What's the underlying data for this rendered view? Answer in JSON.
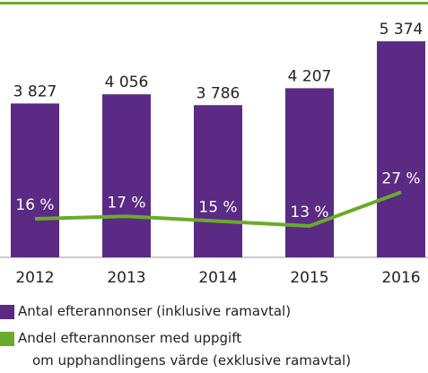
{
  "chart_data": {
    "type": "bar_line",
    "categories": [
      "2012",
      "2013",
      "2014",
      "2015",
      "2016"
    ],
    "series": [
      {
        "name": "Antal efterannonser (inklusive ramavtal)",
        "type": "bar",
        "color": "#5a2a84",
        "values": [
          3827,
          4056,
          3786,
          4207,
          5374
        ],
        "value_labels": [
          "3 827",
          "4 056",
          "3 786",
          "4 207",
          "5 374"
        ]
      },
      {
        "name": "Andel efterannonser med uppgift\nom upphandlingens värde (exklusive ramavtal)",
        "type": "line",
        "axis": "y2",
        "color": "#6aab2a",
        "values": [
          16,
          17,
          15,
          13,
          27
        ],
        "value_labels": [
          "16 %",
          "17 %",
          "15 %",
          "13 %",
          "27 %"
        ]
      }
    ],
    "ylim": [
      0,
      6000
    ],
    "y2lim": [
      0,
      100
    ]
  }
}
